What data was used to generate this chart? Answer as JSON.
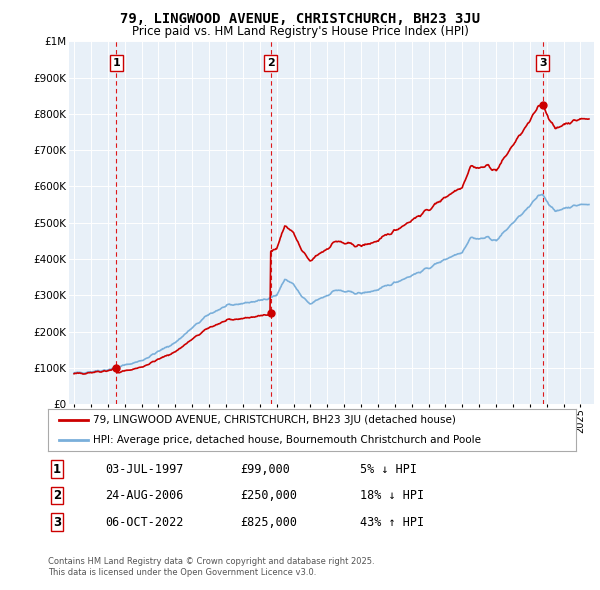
{
  "title": "79, LINGWOOD AVENUE, CHRISTCHURCH, BH23 3JU",
  "subtitle": "Price paid vs. HM Land Registry's House Price Index (HPI)",
  "legend_line1": "79, LINGWOOD AVENUE, CHRISTCHURCH, BH23 3JU (detached house)",
  "legend_line2": "HPI: Average price, detached house, Bournemouth Christchurch and Poole",
  "sales": [
    {
      "num": 1,
      "date": "03-JUL-1997",
      "year": 1997.5,
      "price": 99000,
      "pct": "5%",
      "dir": "↓"
    },
    {
      "num": 2,
      "date": "24-AUG-2006",
      "year": 2006.64,
      "price": 250000,
      "pct": "18%",
      "dir": "↓"
    },
    {
      "num": 3,
      "date": "06-OCT-2022",
      "year": 2022.76,
      "price": 825000,
      "pct": "43%",
      "dir": "↑"
    }
  ],
  "footer1": "Contains HM Land Registry data © Crown copyright and database right 2025.",
  "footer2": "This data is licensed under the Open Government Licence v3.0.",
  "hpi_color": "#7aafda",
  "price_color": "#cc0000",
  "plot_bg": "#e8f0f8",
  "ylim": [
    0,
    1000000
  ],
  "xlim": [
    1994.7,
    2025.8
  ],
  "yticks": [
    0,
    100000,
    200000,
    300000,
    400000,
    500000,
    600000,
    700000,
    800000,
    900000,
    1000000
  ],
  "xticks": [
    1995,
    1996,
    1997,
    1998,
    1999,
    2000,
    2001,
    2002,
    2003,
    2004,
    2005,
    2006,
    2007,
    2008,
    2009,
    2010,
    2011,
    2012,
    2013,
    2014,
    2015,
    2016,
    2017,
    2018,
    2019,
    2020,
    2021,
    2022,
    2023,
    2024,
    2025
  ]
}
